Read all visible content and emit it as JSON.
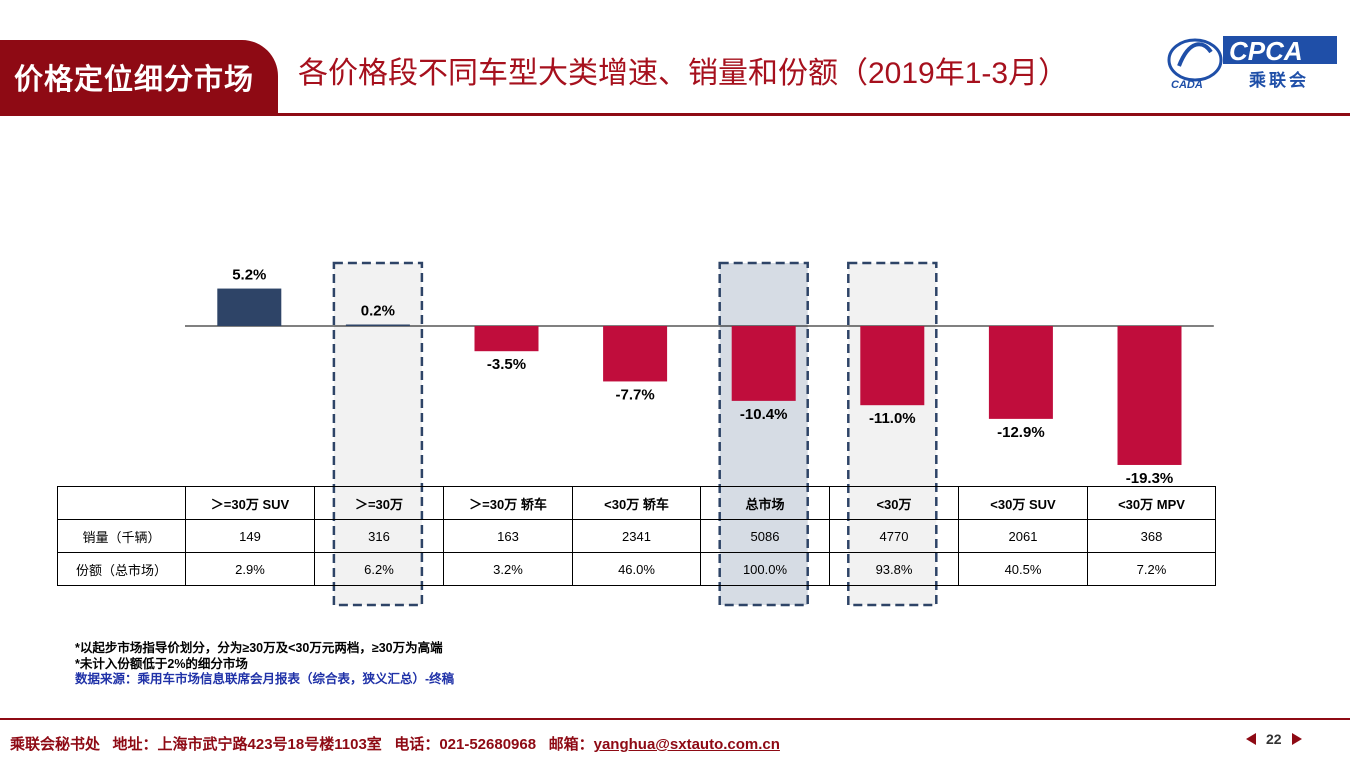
{
  "header": {
    "section_tag": "价格定位细分市场",
    "title": "各价格段不同车型大类增速、销量和份额（2019年1-3月）",
    "logo": {
      "text": "CPCA",
      "subtext": "乘联会",
      "badge": "CADA"
    }
  },
  "chart_data": {
    "type": "bar",
    "categories": [
      ">=30万 SUV",
      ">=30万",
      ">=30万 轿车",
      "<30万 轿车",
      "总市场",
      "<30万",
      "<30万 SUV",
      "<30万 MPV"
    ],
    "values": [
      5.2,
      0.2,
      -3.5,
      -7.7,
      -10.4,
      -11.0,
      -12.9,
      -19.3
    ],
    "value_labels": [
      "5.2%",
      "0.2%",
      "-3.5%",
      "-7.7%",
      "-10.4%",
      "-11.0%",
      "-12.9%",
      "-19.3%"
    ],
    "unit": "%",
    "highlighted_categories": [
      ">=30万",
      "总市场",
      "<30万"
    ],
    "colors": {
      "positive": "#2e4467",
      "negative": "#c00d3c",
      "highlight_fill": "#d6dce4",
      "highlight_fill_light": "#f2f2f2"
    },
    "title": "",
    "xlabel": "",
    "ylabel": ""
  },
  "table": {
    "header": [
      "",
      "＞=30万 SUV",
      "＞=30万",
      "＞=30万 轿车",
      "<30万 轿车",
      "总市场",
      "<30万",
      "<30万 SUV",
      "<30万 MPV"
    ],
    "rows": [
      [
        "销量（千辆）",
        "149",
        "316",
        "163",
        "2341",
        "5086",
        "4770",
        "2061",
        "368"
      ],
      [
        "份额（总市场）",
        "2.9%",
        "6.2%",
        "3.2%",
        "46.0%",
        "100.0%",
        "93.8%",
        "40.5%",
        "7.2%"
      ]
    ]
  },
  "notes": [
    "*以起步市场指导价划分，分为≥30万及<30万元两档，≥30万为高端",
    "*未计入份额低于2%的细分市场"
  ],
  "source": "数据来源：乘用车市场信息联席会月报表（综合表，狭义汇总）-终稿",
  "footer": {
    "org": "乘联会秘书处",
    "address": "地址：上海市武宁路423号18号楼1103室",
    "phone": "电话：021-52680968",
    "email_label": "邮箱：",
    "email": "yanghua@sxtauto.com.cn",
    "page": "22"
  }
}
